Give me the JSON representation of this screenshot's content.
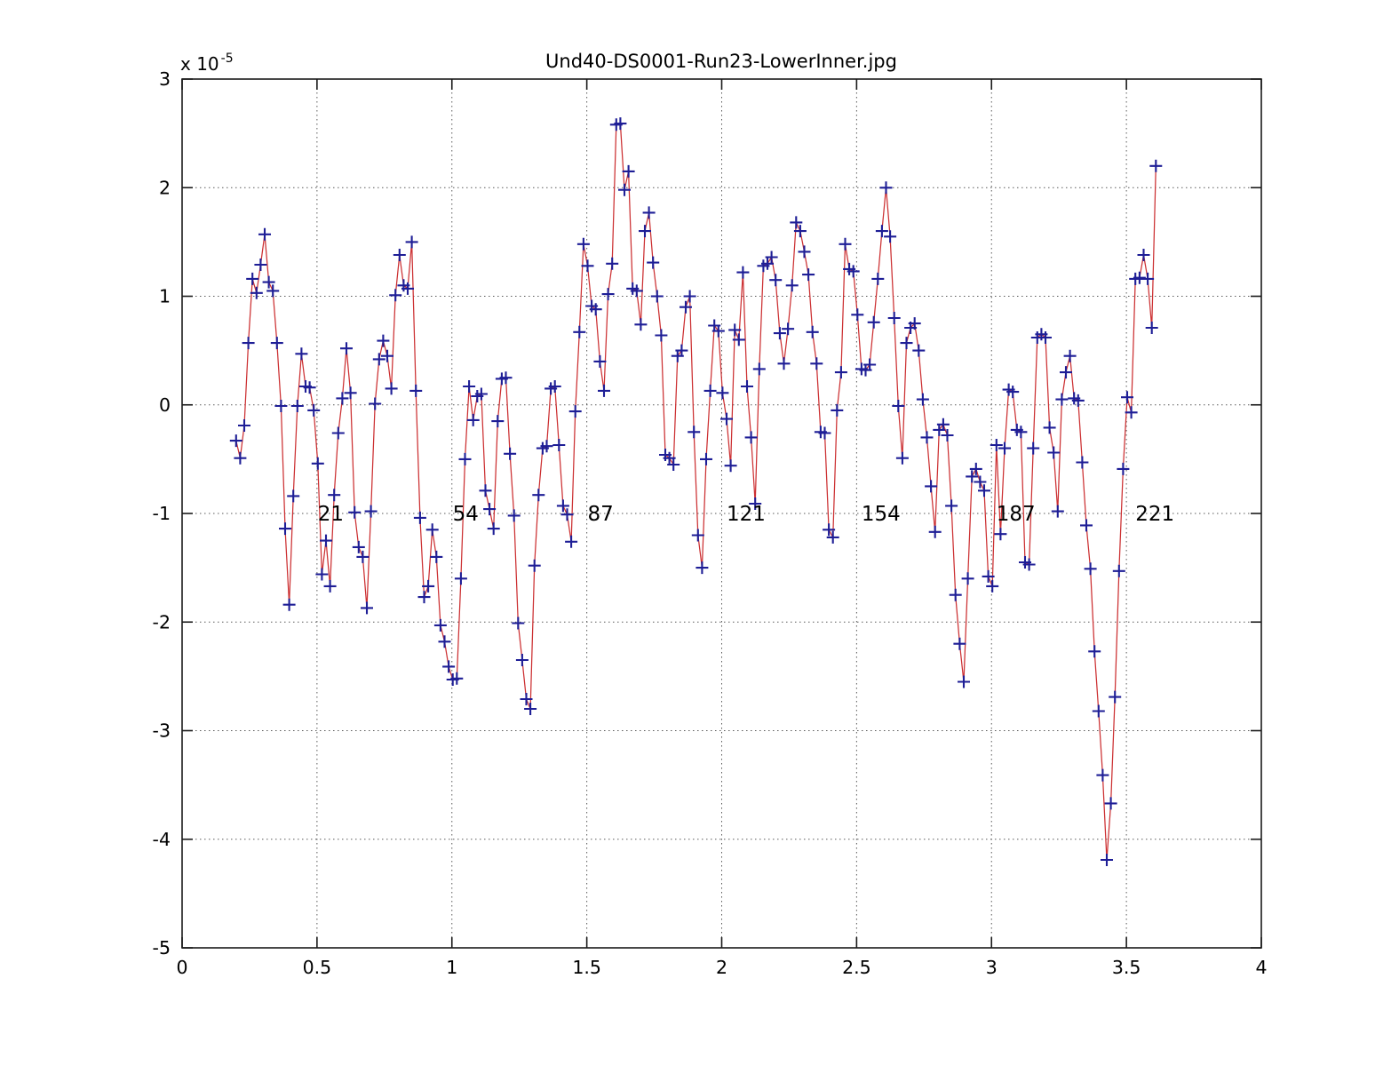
{
  "figure": {
    "background": "#ffffff"
  },
  "chart_data": {
    "type": "line",
    "title": "Und40-DS0001-Run23-LowerInner.jpg",
    "xlabel": "",
    "ylabel": "",
    "y_scale_label": {
      "prefix": "x 10",
      "exponent": "-5"
    },
    "x_axis": {
      "min": 0,
      "max": 4,
      "tick_values": [
        0,
        0.5,
        1,
        1.5,
        2,
        2.5,
        3,
        3.5,
        4
      ],
      "tick_labels": [
        "0",
        "0.5",
        "1",
        "1.5",
        "2",
        "2.5",
        "3",
        "3.5",
        "4"
      ]
    },
    "y_axis": {
      "min": -5,
      "max": 3,
      "units_multiplier": "1e-5",
      "tick_values": [
        3,
        2,
        1,
        0,
        -1,
        -2,
        -3,
        -4,
        -5
      ],
      "tick_labels": [
        "3",
        "2",
        "1",
        "0",
        "-1",
        "-2",
        "-3",
        "-4",
        "-5"
      ]
    },
    "grid": true,
    "grid_style": "dotted",
    "legend": "none",
    "line_color": "#cc3032",
    "marker_shape": "plus",
    "marker_color": "#1e1e96",
    "axis_color": "#1a1a1a",
    "grid_color": "#5a5a5a",
    "series": {
      "x_start": 0.2,
      "x_step": 0.0151515,
      "values": [
        -0.33,
        -0.49,
        -0.19,
        0.57,
        1.16,
        1.03,
        1.29,
        1.57,
        1.13,
        1.05,
        0.57,
        -0.01,
        -1.14,
        -1.84,
        -0.84,
        -0.01,
        0.47,
        0.17,
        0.16,
        -0.05,
        -0.54,
        -1.56,
        -1.25,
        -1.67,
        -0.83,
        -0.26,
        0.06,
        0.52,
        0.11,
        -0.99,
        -1.31,
        -1.4,
        -1.87,
        -0.98,
        0.01,
        0.42,
        0.59,
        0.45,
        0.15,
        1.01,
        1.38,
        1.1,
        1.07,
        1.5,
        0.13,
        -1.04,
        -1.77,
        -1.67,
        -1.15,
        -1.4,
        -2.03,
        -2.18,
        -2.41,
        -2.53,
        -2.52,
        -1.6,
        -0.5,
        0.17,
        -0.14,
        0.08,
        0.1,
        -0.79,
        -0.96,
        -1.14,
        -0.15,
        0.24,
        0.25,
        -0.45,
        -1.02,
        -2.01,
        -2.35,
        -2.71,
        -2.8,
        -1.48,
        -0.83,
        -0.4,
        -0.38,
        0.15,
        0.17,
        -0.37,
        -0.93,
        -1.01,
        -1.26,
        -0.06,
        0.67,
        1.48,
        1.28,
        0.91,
        0.88,
        0.4,
        0.13,
        1.02,
        1.3,
        2.58,
        2.59,
        1.98,
        2.15,
        1.07,
        1.05,
        0.74,
        1.6,
        1.77,
        1.31,
        1.0,
        0.64,
        -0.46,
        -0.49,
        -0.55,
        0.45,
        0.5,
        0.9,
        1.0,
        -0.25,
        -1.2,
        -1.5,
        -0.5,
        0.13,
        0.73,
        0.68,
        0.11,
        -0.13,
        -0.56,
        0.69,
        0.6,
        1.22,
        0.17,
        -0.3,
        -0.91,
        0.33,
        1.28,
        1.3,
        1.36,
        1.15,
        0.66,
        0.38,
        0.7,
        1.1,
        1.68,
        1.6,
        1.41,
        1.2,
        0.67,
        0.38,
        -0.25,
        -0.26,
        -1.15,
        -1.22,
        -0.05,
        0.3,
        1.48,
        1.25,
        1.23,
        0.83,
        0.33,
        0.32,
        0.37,
        0.76,
        1.16,
        1.6,
        2.0,
        1.55,
        0.8,
        -0.01,
        -0.49,
        0.57,
        0.71,
        0.75,
        0.5,
        0.05,
        -0.3,
        -0.75,
        -1.17,
        -0.23,
        -0.18,
        -0.28,
        -0.93,
        -1.75,
        -2.2,
        -2.55,
        -1.6,
        -0.66,
        -0.59,
        -0.71,
        -0.79,
        -1.58,
        -1.67,
        -0.37,
        -1.19,
        -0.4,
        0.14,
        0.12,
        -0.23,
        -0.25,
        -1.45,
        -1.47,
        -0.4,
        0.62,
        0.65,
        0.62,
        -0.21,
        -0.44,
        -0.98,
        0.05,
        0.3,
        0.45,
        0.06,
        0.04,
        -0.53,
        -1.11,
        -1.51,
        -2.27,
        -2.82,
        -3.41,
        -4.19,
        -3.67,
        -2.69,
        -1.53,
        -0.59,
        0.07,
        -0.07,
        1.16,
        1.17,
        1.38,
        1.16,
        0.71,
        2.2
      ]
    },
    "point_labels": {
      "y_value": -1,
      "items": [
        {
          "text": "21",
          "point_index": 20
        },
        {
          "text": "54",
          "point_index": 53
        },
        {
          "text": "87",
          "point_index": 86
        },
        {
          "text": "121",
          "point_index": 120
        },
        {
          "text": "154",
          "point_index": 153
        },
        {
          "text": "187",
          "point_index": 186
        },
        {
          "text": "221",
          "point_index": 220
        }
      ]
    }
  }
}
